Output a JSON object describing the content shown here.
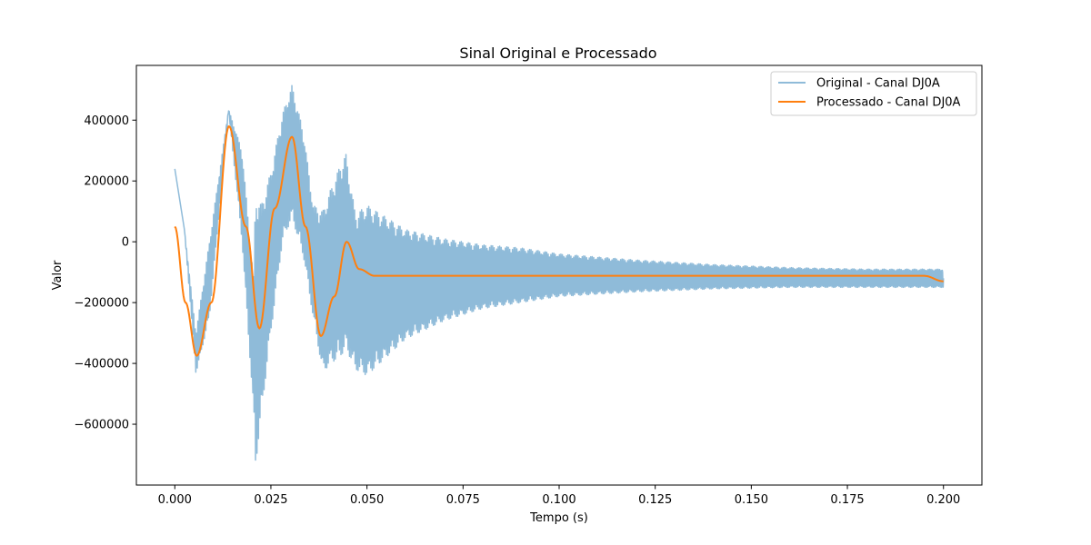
{
  "chart_data": {
    "type": "line",
    "title": "Sinal Original e Processado",
    "xlabel": "Tempo (s)",
    "ylabel": "Valor",
    "xlim": [
      -0.01,
      0.21
    ],
    "ylim": [
      -800000,
      580000
    ],
    "x_ticks": [
      0.0,
      0.025,
      0.05,
      0.075,
      0.1,
      0.125,
      0.15,
      0.175,
      0.2
    ],
    "x_tick_labels": [
      "0.000",
      "0.025",
      "0.050",
      "0.075",
      "0.100",
      "0.125",
      "0.150",
      "0.175",
      "0.200"
    ],
    "y_ticks": [
      -600000,
      -400000,
      -200000,
      0,
      200000,
      400000
    ],
    "y_tick_labels": [
      "−600000",
      "−400000",
      "−200000",
      "0",
      "200000",
      "400000"
    ],
    "grid": false,
    "legend_position": "top-right",
    "series": [
      {
        "name": "Original - Canal DJ0A",
        "color": "#1f77b4",
        "alpha": 0.5,
        "x": [
          0.0,
          0.0025,
          0.0055,
          0.009,
          0.014,
          0.0175,
          0.0205,
          0.021,
          0.0225,
          0.025,
          0.028,
          0.0305,
          0.0335,
          0.036,
          0.0385,
          0.0405,
          0.043,
          0.0445,
          0.047,
          0.05,
          0.055,
          0.06,
          0.07,
          0.08,
          0.09,
          0.1,
          0.12,
          0.14,
          0.16,
          0.18,
          0.2
        ],
        "envelope_upper": [
          240000,
          40000,
          -300000,
          0,
          435000,
          300000,
          -120000,
          160000,
          120000,
          230000,
          420000,
          515000,
          360000,
          120000,
          100000,
          170000,
          250000,
          290000,
          90000,
          120000,
          80000,
          40000,
          10000,
          -10000,
          -20000,
          -40000,
          -60000,
          -75000,
          -85000,
          -90000,
          -90000
        ],
        "envelope_lower": [
          240000,
          40000,
          -435000,
          -250000,
          430000,
          0,
          -560000,
          -740000,
          -570000,
          -300000,
          0,
          80000,
          -50000,
          -250000,
          -430000,
          -400000,
          -380000,
          -350000,
          -420000,
          -440000,
          -380000,
          -320000,
          -260000,
          -220000,
          -200000,
          -180000,
          -165000,
          -155000,
          -150000,
          -150000,
          -150000
        ]
      },
      {
        "name": "Processado - Canal DJ0A",
        "color": "#ff7f0e",
        "alpha": 1.0,
        "x": [
          0.0,
          0.0028,
          0.0057,
          0.0095,
          0.0141,
          0.0185,
          0.022,
          0.026,
          0.0305,
          0.034,
          0.038,
          0.0415,
          0.0447,
          0.048,
          0.052,
          0.06,
          0.08,
          0.1,
          0.12,
          0.14,
          0.16,
          0.18,
          0.195,
          0.2
        ],
        "y": [
          50000,
          -200000,
          -375000,
          -200000,
          380000,
          50000,
          -285000,
          110000,
          345000,
          50000,
          -310000,
          -180000,
          0,
          -90000,
          -112000,
          -112000,
          -112000,
          -112000,
          -112000,
          -112000,
          -112000,
          -112000,
          -112000,
          -130000
        ]
      }
    ]
  }
}
